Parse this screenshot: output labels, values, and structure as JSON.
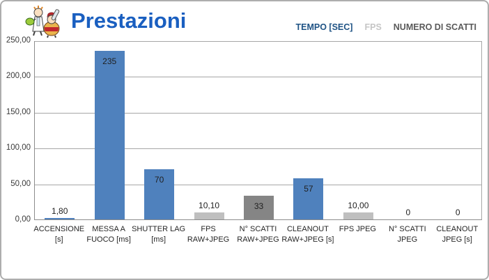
{
  "header": {
    "title": "Prestazioni",
    "legend": [
      {
        "label": "TEMPO [SEC]",
        "color": "#1F5385"
      },
      {
        "label": "FPS",
        "color": "#C6C6C6"
      },
      {
        "label": "NUMERO DI SCATTI",
        "color": "#5A5A5A"
      }
    ]
  },
  "chart_data": {
    "type": "bar",
    "title": "Prestazioni",
    "categories": [
      "ACCENSIONE [s]",
      "MESSA A FUOCO [ms]",
      "SHUTTER LAG [ms]",
      "FPS RAW+JPEG",
      "N° SCATTI RAW+JPEG",
      "CLEANOUT RAW+JPEG [s]",
      "FPS JPEG",
      "N° SCATTI JPEG",
      "CLEANOUT JPEG [s]"
    ],
    "values": [
      1.8,
      235,
      70,
      10.1,
      33,
      57,
      10,
      0,
      0
    ],
    "value_labels": [
      "1,80",
      "235",
      "70",
      "10,10",
      "33",
      "57",
      "10,00",
      "0",
      "0"
    ],
    "bar_series": [
      "tempo",
      "tempo",
      "tempo",
      "fps",
      "scatti",
      "tempo",
      "fps",
      "scatti",
      "tempo"
    ],
    "series_colors": {
      "tempo": "#4F81BD",
      "fps": "#BFBFBF",
      "scatti": "#858585"
    },
    "series_legend": [
      "TEMPO [SEC]",
      "FPS",
      "NUMERO DI SCATTI"
    ],
    "xlabel": "",
    "ylabel": "",
    "ylim": [
      0,
      250
    ],
    "ytick_step": 50,
    "ytick_labels": [
      "0,00",
      "50,00",
      "100,00",
      "150,00",
      "200,00",
      "250,00"
    ],
    "grid": true,
    "legend_position": "top-right"
  }
}
